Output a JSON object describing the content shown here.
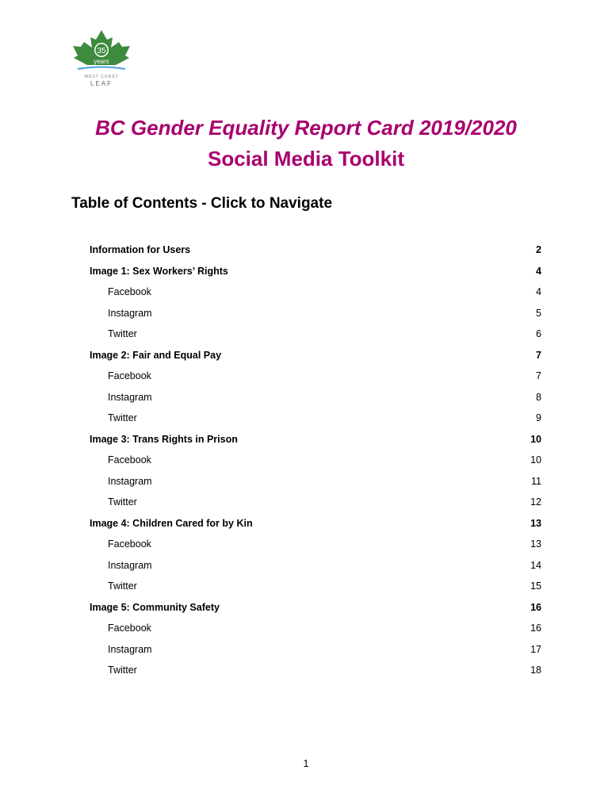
{
  "logo": {
    "number": "35",
    "years": "years",
    "line1": "WEST COAST",
    "line2": "LEAF",
    "green": "#3e8a3e",
    "blue": "#4aa3d8"
  },
  "title": {
    "line1": "BC Gender Equality Report Card 2019/2020",
    "line2": "Social Media Toolkit",
    "color": "#a8006e"
  },
  "toc": {
    "heading": "Table of Contents - Click to Navigate",
    "entries": [
      {
        "label": "Information for Users",
        "page": "2",
        "level": 1
      },
      {
        "label": "Image 1: Sex Workers’ Rights",
        "page": "4",
        "level": 1
      },
      {
        "label": "Facebook",
        "page": "4",
        "level": 2
      },
      {
        "label": "Instagram",
        "page": "5",
        "level": 2
      },
      {
        "label": "Twitter",
        "page": "6",
        "level": 2
      },
      {
        "label": "Image 2: Fair and Equal Pay",
        "page": "7",
        "level": 1
      },
      {
        "label": "Facebook",
        "page": "7",
        "level": 2
      },
      {
        "label": "Instagram",
        "page": "8",
        "level": 2
      },
      {
        "label": "Twitter",
        "page": "9",
        "level": 2
      },
      {
        "label": "Image 3: Trans Rights in Prison",
        "page": "10",
        "level": 1
      },
      {
        "label": "Facebook",
        "page": "10",
        "level": 2
      },
      {
        "label": "Instagram",
        "page": "11",
        "level": 2
      },
      {
        "label": "Twitter",
        "page": "12",
        "level": 2
      },
      {
        "label": "Image 4: Children Cared for by Kin",
        "page": "13",
        "level": 1
      },
      {
        "label": "Facebook",
        "page": "13",
        "level": 2
      },
      {
        "label": "Instagram",
        "page": "14",
        "level": 2
      },
      {
        "label": "Twitter",
        "page": "15",
        "level": 2
      },
      {
        "label": "Image 5: Community Safety",
        "page": "16",
        "level": 1
      },
      {
        "label": "Facebook",
        "page": "16",
        "level": 2
      },
      {
        "label": "Instagram",
        "page": "17",
        "level": 2
      },
      {
        "label": "Twitter",
        "page": "18",
        "level": 2
      }
    ]
  },
  "footer": {
    "page_number": "1"
  }
}
